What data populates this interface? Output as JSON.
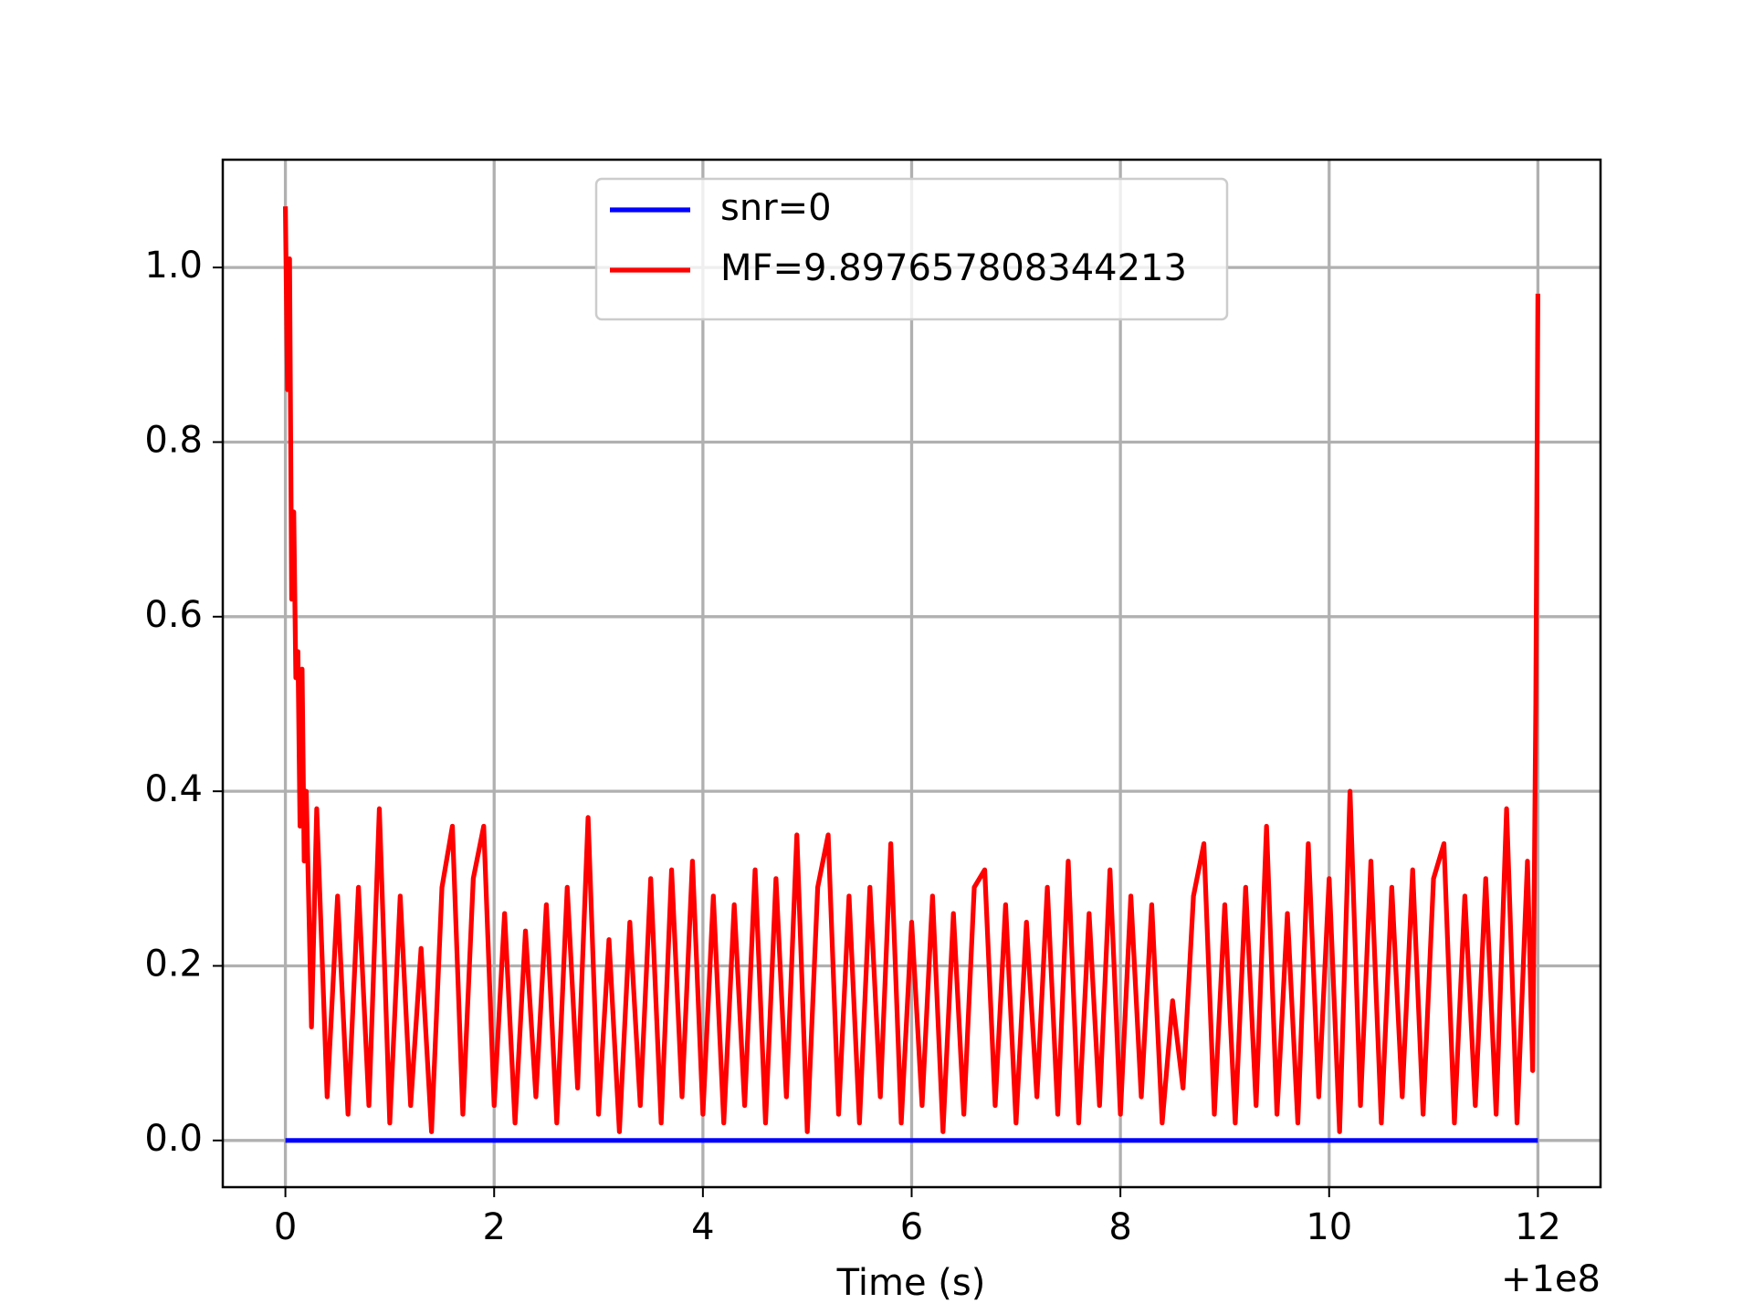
{
  "chart_data": {
    "type": "line",
    "xlabel": "Time (s)",
    "x_offset_label": "+1e8",
    "xlim": [
      -0.6,
      12.6
    ],
    "ylim": [
      -0.0535,
      1.1235
    ],
    "xticks": [
      0,
      2,
      4,
      6,
      8,
      10,
      12
    ],
    "yticks": [
      {
        "value": 0,
        "label": "0.0"
      },
      {
        "value": 0.2,
        "label": "0.2"
      },
      {
        "value": 0.4,
        "label": "0.4"
      },
      {
        "value": 0.6,
        "label": "0.6"
      },
      {
        "value": 0.8,
        "label": "0.8"
      },
      {
        "value": 1.0,
        "label": "1.0"
      }
    ],
    "grid": true,
    "legend": "upper center",
    "series": [
      {
        "name": "snr=0",
        "color": "#0000ff",
        "x": [
          0,
          12
        ],
        "values": [
          0,
          0
        ]
      },
      {
        "name": "MF=9.897657808344213",
        "color": "#ff0000",
        "x": [
          0,
          0.02,
          0.04,
          0.06,
          0.08,
          0.1,
          0.12,
          0.14,
          0.16,
          0.18,
          0.2,
          0.25,
          0.3,
          0.4,
          0.5,
          0.6,
          0.7,
          0.8,
          0.9,
          1.0,
          1.1,
          1.2,
          1.3,
          1.4,
          1.5,
          1.6,
          1.7,
          1.8,
          1.9,
          2.0,
          2.1,
          2.2,
          2.3,
          2.4,
          2.5,
          2.6,
          2.7,
          2.8,
          2.9,
          3.0,
          3.1,
          3.2,
          3.3,
          3.4,
          3.5,
          3.6,
          3.7,
          3.8,
          3.9,
          4.0,
          4.1,
          4.2,
          4.3,
          4.4,
          4.5,
          4.6,
          4.7,
          4.8,
          4.9,
          5.0,
          5.1,
          5.2,
          5.3,
          5.4,
          5.5,
          5.6,
          5.7,
          5.8,
          5.9,
          6.0,
          6.1,
          6.2,
          6.3,
          6.4,
          6.5,
          6.6,
          6.7,
          6.8,
          6.9,
          7.0,
          7.1,
          7.2,
          7.3,
          7.4,
          7.5,
          7.6,
          7.7,
          7.8,
          7.9,
          8.0,
          8.1,
          8.2,
          8.3,
          8.4,
          8.5,
          8.6,
          8.7,
          8.8,
          8.9,
          9.0,
          9.1,
          9.2,
          9.3,
          9.4,
          9.5,
          9.6,
          9.7,
          9.8,
          9.9,
          10.0,
          10.1,
          10.2,
          10.3,
          10.4,
          10.5,
          10.6,
          10.7,
          10.8,
          10.9,
          11.0,
          11.1,
          11.2,
          11.3,
          11.4,
          11.5,
          11.6,
          11.7,
          11.8,
          11.9,
          11.95,
          11.98,
          12.0
        ],
        "values": [
          1.07,
          0.86,
          1.01,
          0.62,
          0.72,
          0.53,
          0.56,
          0.36,
          0.54,
          0.32,
          0.4,
          0.13,
          0.38,
          0.05,
          0.28,
          0.03,
          0.29,
          0.04,
          0.38,
          0.02,
          0.28,
          0.04,
          0.22,
          0.01,
          0.29,
          0.36,
          0.03,
          0.3,
          0.36,
          0.04,
          0.26,
          0.02,
          0.24,
          0.05,
          0.27,
          0.02,
          0.29,
          0.06,
          0.37,
          0.03,
          0.23,
          0.01,
          0.25,
          0.04,
          0.3,
          0.02,
          0.31,
          0.05,
          0.32,
          0.03,
          0.28,
          0.02,
          0.27,
          0.04,
          0.31,
          0.02,
          0.3,
          0.05,
          0.35,
          0.01,
          0.29,
          0.35,
          0.03,
          0.28,
          0.02,
          0.29,
          0.05,
          0.34,
          0.02,
          0.25,
          0.04,
          0.28,
          0.01,
          0.26,
          0.03,
          0.29,
          0.31,
          0.04,
          0.27,
          0.02,
          0.25,
          0.05,
          0.29,
          0.03,
          0.32,
          0.02,
          0.26,
          0.04,
          0.31,
          0.03,
          0.28,
          0.05,
          0.27,
          0.02,
          0.16,
          0.06,
          0.28,
          0.34,
          0.03,
          0.27,
          0.02,
          0.29,
          0.04,
          0.36,
          0.03,
          0.26,
          0.02,
          0.34,
          0.05,
          0.3,
          0.01,
          0.4,
          0.04,
          0.32,
          0.02,
          0.29,
          0.05,
          0.31,
          0.03,
          0.3,
          0.34,
          0.02,
          0.28,
          0.04,
          0.3,
          0.03,
          0.38,
          0.02,
          0.32,
          0.08,
          0.5,
          0.97
        ]
      }
    ]
  }
}
